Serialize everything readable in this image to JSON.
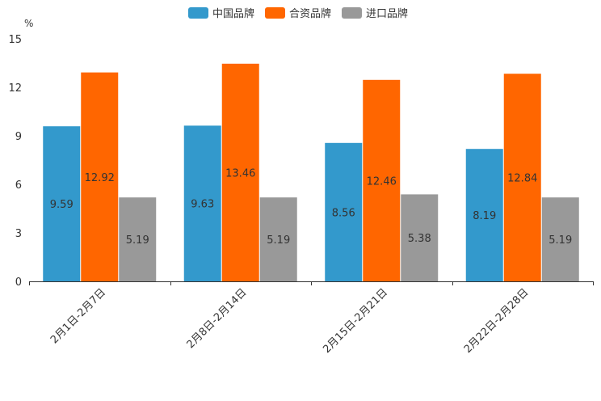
{
  "chart_data": {
    "type": "bar",
    "unit": "%",
    "categories": [
      "2月1日-2月7日",
      "2月8日-2月14日",
      "2月15日-2月21日",
      "2月22日-2月28日"
    ],
    "series": [
      {
        "name": "中国品牌",
        "color": "#3399cc",
        "values": [
          9.59,
          9.63,
          8.56,
          8.19
        ],
        "labels": [
          "9.59",
          "9.63",
          "8.56",
          "8.19"
        ]
      },
      {
        "name": "合资品牌",
        "color": "#ff6600",
        "values": [
          12.92,
          13.46,
          12.46,
          12.84
        ],
        "labels": [
          "12.92",
          "13.46",
          "12.46",
          "12.84"
        ]
      },
      {
        "name": "进口品牌",
        "color": "#999999",
        "values": [
          5.19,
          5.19,
          5.38,
          5.19
        ],
        "labels": [
          "5.19",
          "5.19",
          "5.38",
          "5.19"
        ]
      }
    ],
    "y_ticks": [
      "0",
      "3",
      "6",
      "9",
      "12",
      "15"
    ],
    "ylim": [
      0,
      15
    ],
    "legend_position": "top-center",
    "grid": false
  }
}
